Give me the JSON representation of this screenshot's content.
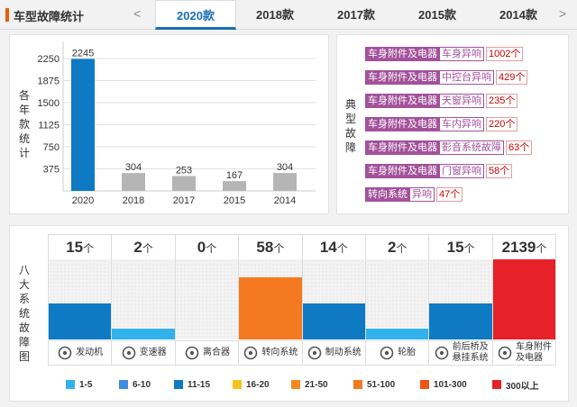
{
  "header": {
    "title": "车型故障统计",
    "prev_arrow": "<",
    "next_arrow": ">",
    "tabs": [
      {
        "label": "2020款",
        "active": true
      },
      {
        "label": "2018款",
        "active": false
      },
      {
        "label": "2017款",
        "active": false
      },
      {
        "label": "2015款",
        "active": false
      },
      {
        "label": "2014款",
        "active": false
      }
    ]
  },
  "year_chart": {
    "side_label": [
      "各",
      "年",
      "款",
      "统",
      "计"
    ],
    "chart_data": {
      "type": "bar",
      "categories": [
        "2020",
        "2018",
        "2017",
        "2015",
        "2014"
      ],
      "values": [
        2245,
        304,
        253,
        167,
        304
      ],
      "data_labels": [
        "2245",
        "304",
        "253",
        "167",
        "304"
      ],
      "yticks": [
        375,
        750,
        1125,
        1500,
        1875,
        2250
      ],
      "ylim": [
        0,
        2450
      ],
      "highlight_color": "#0e7ac4",
      "bar_color": "#b5b5b5",
      "grid": true
    }
  },
  "typical_faults": {
    "side_label": [
      "典",
      "型",
      "故",
      "障"
    ],
    "items": [
      {
        "category": "车身附件及电器",
        "name": "车身异响",
        "count": "1002个"
      },
      {
        "category": "车身附件及电器",
        "name": "中控台异响",
        "count": "429个"
      },
      {
        "category": "车身附件及电器",
        "name": "天窗异响",
        "count": "235个"
      },
      {
        "category": "车身附件及电器",
        "name": "车内异响",
        "count": "220个"
      },
      {
        "category": "车身附件及电器",
        "name": "影音系统故障",
        "count": "63个"
      },
      {
        "category": "车身附件及电器",
        "name": "门窗异响",
        "count": "58个"
      },
      {
        "category": "转向系统",
        "name": "异响",
        "count": "47个"
      }
    ]
  },
  "component_chart": {
    "side_label": [
      "八",
      "大",
      "系",
      "统",
      "故",
      "障",
      "图"
    ],
    "unit": "个",
    "components": [
      {
        "name": [
          "发动机"
        ],
        "count": "15",
        "value": 15,
        "level": 0.45,
        "color": "#0e7ac4",
        "icon": "engine-icon"
      },
      {
        "name": [
          "变速器"
        ],
        "count": "2",
        "value": 2,
        "level": 0.14,
        "color": "#32b2ec",
        "icon": "gear-shift-icon"
      },
      {
        "name": [
          "离合器"
        ],
        "count": "0",
        "value": 0,
        "level": 0,
        "color": "#32b2ec",
        "icon": "clutch-icon"
      },
      {
        "name": [
          "转向系统"
        ],
        "count": "58",
        "value": 58,
        "level": 0.78,
        "color": "#f47921",
        "icon": "steering-wheel-icon"
      },
      {
        "name": [
          "制动系统"
        ],
        "count": "14",
        "value": 14,
        "level": 0.45,
        "color": "#0e7ac4",
        "icon": "brake-icon"
      },
      {
        "name": [
          "轮胎"
        ],
        "count": "2",
        "value": 2,
        "level": 0.14,
        "color": "#32b2ec",
        "icon": "tire-icon"
      },
      {
        "name": [
          "前后桥及",
          "悬挂系统"
        ],
        "count": "15",
        "value": 15,
        "level": 0.45,
        "color": "#0e7ac4",
        "icon": "axle-icon"
      },
      {
        "name": [
          "车身附件",
          "及电器"
        ],
        "count": "2139",
        "value": 2139,
        "level": 1.0,
        "color": "#e62128",
        "icon": "battery-icon"
      }
    ]
  },
  "legend": [
    {
      "label": "1-5",
      "color": "#32b2ec"
    },
    {
      "label": "6-10",
      "color": "#3e8fe0"
    },
    {
      "label": "11-15",
      "color": "#0e7ac4"
    },
    {
      "label": "16-20",
      "color": "#f6c31c"
    },
    {
      "label": "21-50",
      "color": "#f58a1f"
    },
    {
      "label": "51-100",
      "color": "#f47921"
    },
    {
      "label": "101-300",
      "color": "#ea5512"
    },
    {
      "label": "300以上",
      "color": "#e62128"
    }
  ]
}
